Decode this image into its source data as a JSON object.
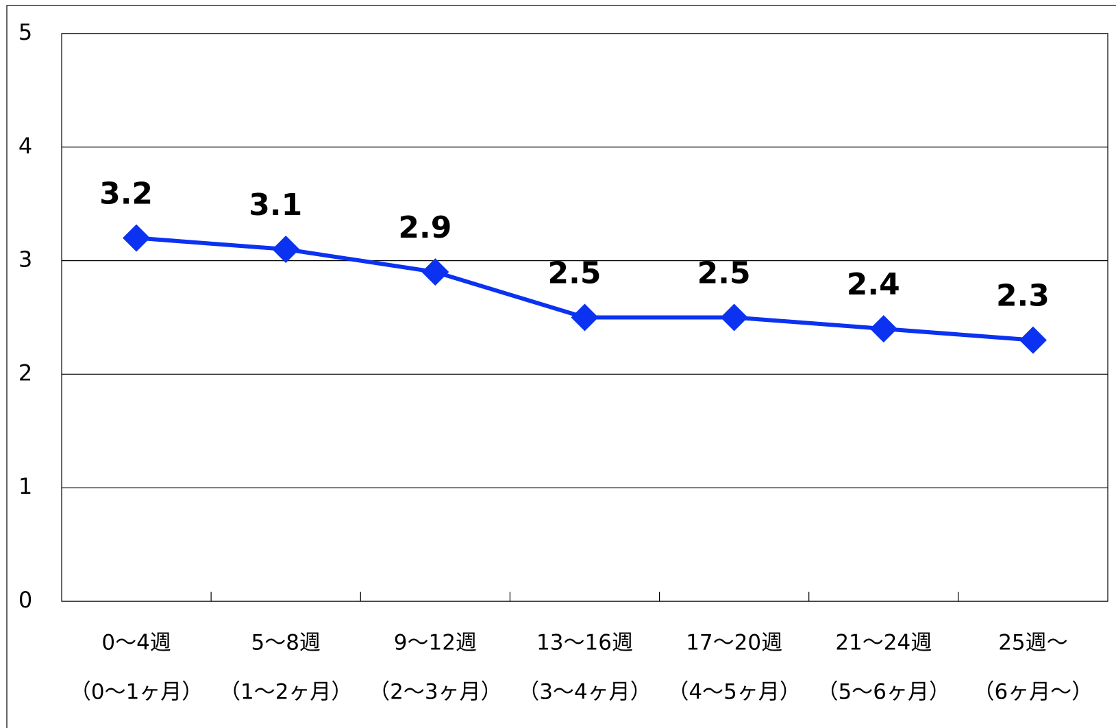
{
  "chart_data": {
    "type": "line",
    "categories": [
      [
        "0～4週",
        "（0～1ヶ月）"
      ],
      [
        "5～8週",
        "（1～2ヶ月）"
      ],
      [
        "9～12週",
        "（2～3ヶ月）"
      ],
      [
        "13～16週",
        "（3～4ヶ月）"
      ],
      [
        "17～20週",
        "（4～5ヶ月）"
      ],
      [
        "21～24週",
        "（5～6ヶ月）"
      ],
      [
        "25週～",
        "（6ヶ月～）"
      ]
    ],
    "values": [
      3.2,
      3.1,
      2.9,
      2.5,
      2.5,
      2.4,
      2.3
    ],
    "color": "#0a32f0",
    "ylim": [
      0,
      5
    ],
    "yticks": [
      0,
      1,
      2,
      3,
      4,
      5
    ],
    "grid": true
  }
}
